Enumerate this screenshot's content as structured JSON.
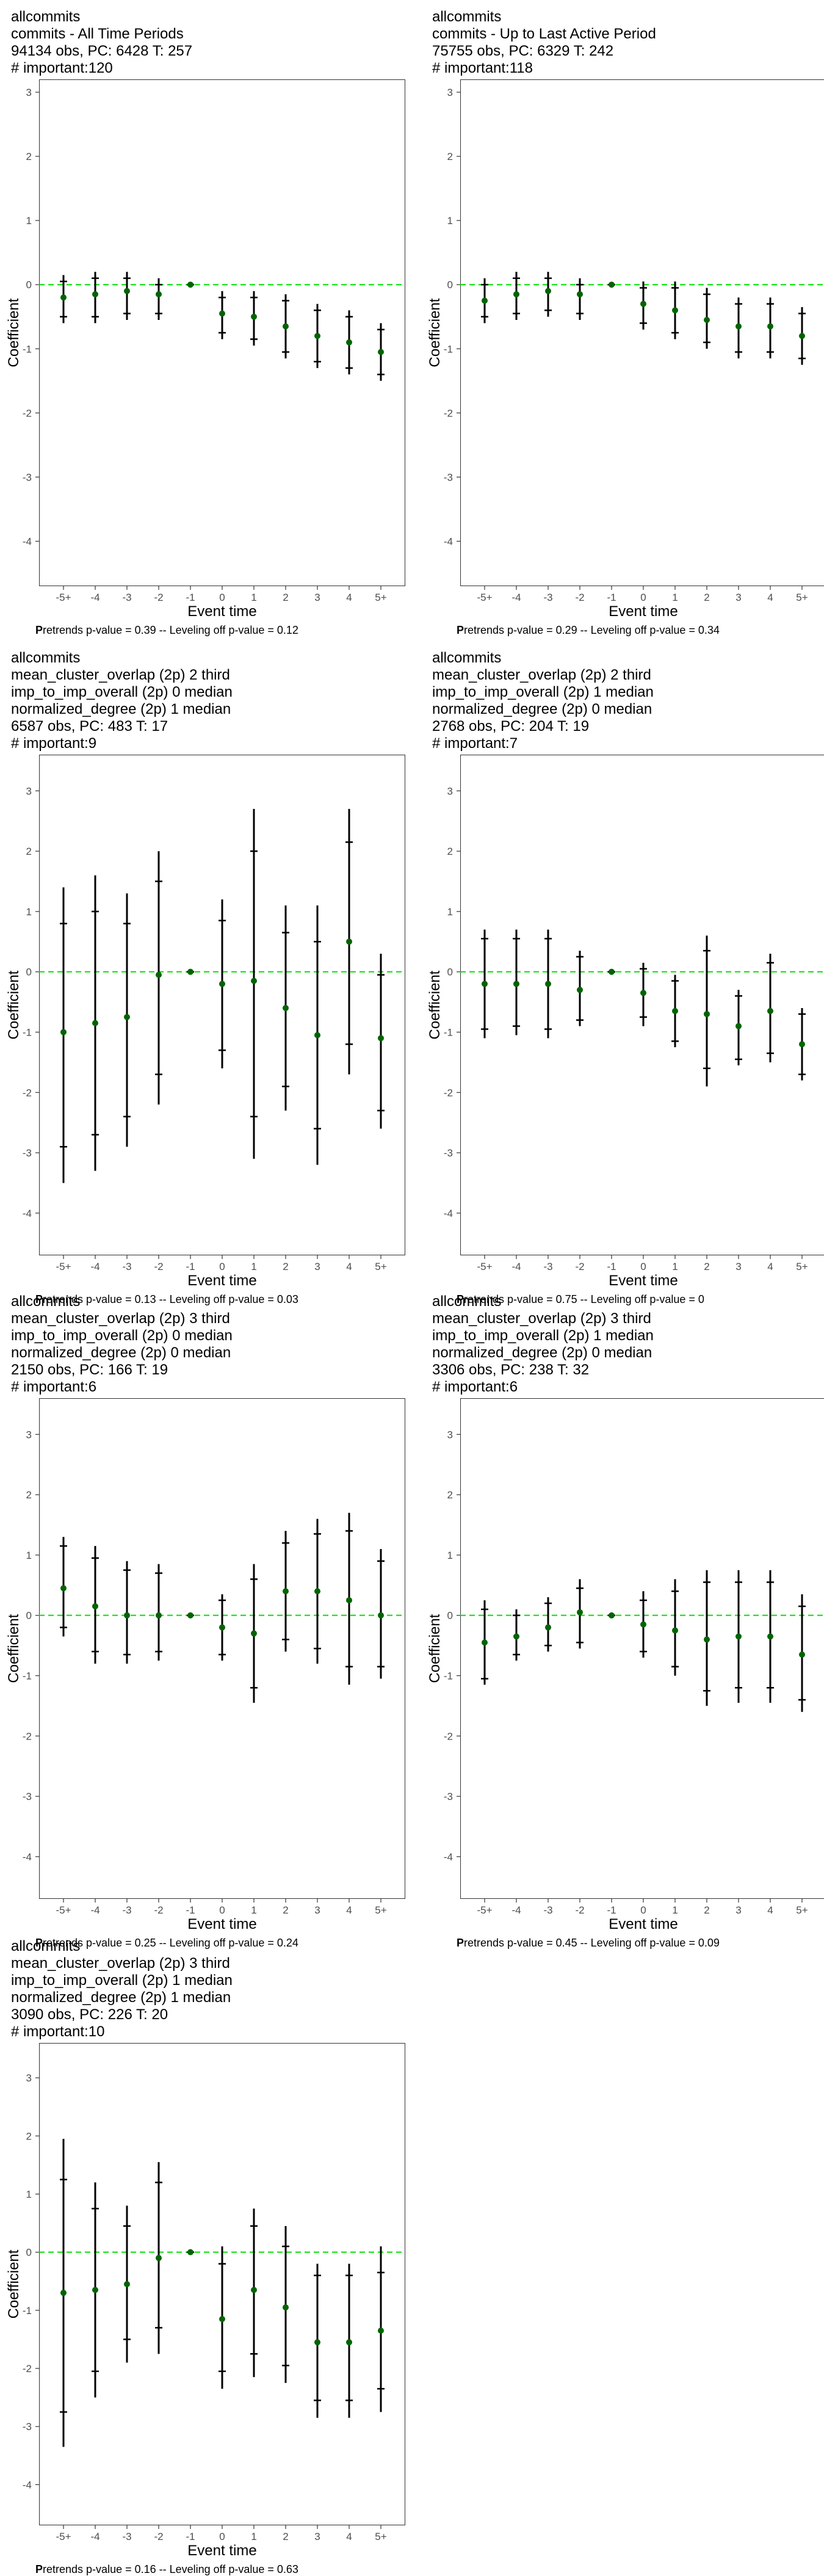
{
  "colors": {
    "point": "#006400",
    "bar": "#000000",
    "zero_line": "#00e000",
    "panel_border": "#333333"
  },
  "chart_data": [
    {
      "type": "scatter",
      "title_lines": [
        "allcommits",
        "commits - All Time Periods",
        "94134 obs, PC: 6428 T: 257",
        "# important:120"
      ],
      "xlabel": "Event time",
      "ylabel": "Coefficient",
      "categories": [
        "-5+",
        "-4",
        "-3",
        "-2",
        "-1",
        "0",
        "1",
        "2",
        "3",
        "4",
        "5+"
      ],
      "ylim": [
        -4.7,
        3.2
      ],
      "yticks": [
        3,
        2,
        1,
        0,
        -1,
        -2,
        -3,
        -4
      ],
      "estimate": [
        -0.2,
        -0.15,
        -0.1,
        -0.15,
        0,
        -0.45,
        -0.5,
        -0.65,
        -0.8,
        -0.9,
        -1.05
      ],
      "ci_low": [
        -0.6,
        -0.6,
        -0.55,
        -0.55,
        0,
        -0.85,
        -0.95,
        -1.15,
        -1.3,
        -1.4,
        -1.5
      ],
      "ci_high": [
        0.15,
        0.2,
        0.2,
        0.1,
        0,
        -0.1,
        -0.1,
        -0.15,
        -0.3,
        -0.4,
        -0.6
      ],
      "ci90_low": [
        -0.5,
        -0.5,
        -0.45,
        -0.45,
        0,
        -0.75,
        -0.85,
        -1.05,
        -1.2,
        -1.3,
        -1.4
      ],
      "ci90_high": [
        0.05,
        0.1,
        0.1,
        0.0,
        0,
        -0.2,
        -0.2,
        -0.25,
        -0.4,
        -0.5,
        -0.7
      ],
      "caption_bold": "P",
      "caption": "retrends p-value = 0.39 -- Leveling off p-value = 0.12"
    },
    {
      "type": "scatter",
      "title_lines": [
        "allcommits",
        "commits - Up to Last Active Period",
        "75755 obs, PC: 6329 T: 242",
        "# important:118"
      ],
      "xlabel": "Event time",
      "ylabel": "Coefficient",
      "categories": [
        "-5+",
        "-4",
        "-3",
        "-2",
        "-1",
        "0",
        "1",
        "2",
        "3",
        "4",
        "5+"
      ],
      "ylim": [
        -4.7,
        3.2
      ],
      "yticks": [
        3,
        2,
        1,
        0,
        -1,
        -2,
        -3,
        -4
      ],
      "estimate": [
        -0.25,
        -0.15,
        -0.1,
        -0.15,
        0,
        -0.3,
        -0.4,
        -0.55,
        -0.65,
        -0.65,
        -0.8
      ],
      "ci_low": [
        -0.6,
        -0.55,
        -0.5,
        -0.55,
        0,
        -0.7,
        -0.85,
        -1.0,
        -1.15,
        -1.15,
        -1.25
      ],
      "ci_high": [
        0.1,
        0.2,
        0.2,
        0.1,
        0,
        0.05,
        0.05,
        -0.05,
        -0.2,
        -0.2,
        -0.35
      ],
      "ci90_low": [
        -0.5,
        -0.45,
        -0.4,
        -0.45,
        0,
        -0.6,
        -0.75,
        -0.9,
        -1.05,
        -1.05,
        -1.15
      ],
      "ci90_high": [
        0.0,
        0.1,
        0.1,
        0.0,
        0,
        -0.05,
        -0.05,
        -0.15,
        -0.3,
        -0.3,
        -0.45
      ],
      "caption_bold": "P",
      "caption": "retrends p-value = 0.29 -- Leveling off p-value = 0.34"
    },
    {
      "type": "scatter",
      "title_lines": [
        "allcommits",
        "mean_cluster_overlap (2p) 2 third",
        "imp_to_imp_overall (2p) 0 median",
        "normalized_degree (2p) 1 median",
        "6587 obs, PC: 483 T: 17",
        "# important:9"
      ],
      "xlabel": "Event time",
      "ylabel": "Coefficient",
      "categories": [
        "-5+",
        "-4",
        "-3",
        "-2",
        "-1",
        "0",
        "1",
        "2",
        "3",
        "4",
        "5+"
      ],
      "ylim": [
        -4.7,
        3.6
      ],
      "yticks": [
        3,
        2,
        1,
        0,
        -1,
        -2,
        -3,
        -4
      ],
      "estimate": [
        -1.0,
        -0.85,
        -0.75,
        -0.05,
        0,
        -0.2,
        -0.15,
        -0.6,
        -1.05,
        0.5,
        -1.1
      ],
      "ci_low": [
        -3.5,
        -3.3,
        -2.9,
        -2.2,
        0,
        -1.6,
        -3.1,
        -2.3,
        -3.2,
        -1.7,
        -2.6
      ],
      "ci_high": [
        1.4,
        1.6,
        1.3,
        2.0,
        0,
        1.2,
        2.7,
        1.1,
        1.1,
        2.7,
        0.3
      ],
      "ci90_low": [
        -2.9,
        -2.7,
        -2.4,
        -1.7,
        0,
        -1.3,
        -2.4,
        -1.9,
        -2.6,
        -1.2,
        -2.3
      ],
      "ci90_high": [
        0.8,
        1.0,
        0.8,
        1.5,
        0,
        0.85,
        2.0,
        0.65,
        0.5,
        2.15,
        -0.05
      ],
      "caption_bold": "P",
      "caption": "retrends p-value = 0.13 -- Leveling off p-value = 0.03"
    },
    {
      "type": "scatter",
      "title_lines": [
        "allcommits",
        "mean_cluster_overlap (2p) 2 third",
        "imp_to_imp_overall (2p) 1 median",
        "normalized_degree (2p) 0 median",
        "2768 obs, PC: 204 T: 19",
        "# important:7"
      ],
      "xlabel": "Event time",
      "ylabel": "Coefficient",
      "categories": [
        "-5+",
        "-4",
        "-3",
        "-2",
        "-1",
        "0",
        "1",
        "2",
        "3",
        "4",
        "5+"
      ],
      "ylim": [
        -4.7,
        3.6
      ],
      "yticks": [
        3,
        2,
        1,
        0,
        -1,
        -2,
        -3,
        -4
      ],
      "estimate": [
        -0.2,
        -0.2,
        -0.2,
        -0.3,
        0,
        -0.35,
        -0.65,
        -0.7,
        -0.9,
        -0.65,
        -1.2
      ],
      "ci_low": [
        -1.1,
        -1.05,
        -1.1,
        -0.9,
        0,
        -0.9,
        -1.25,
        -1.9,
        -1.55,
        -1.5,
        -1.8
      ],
      "ci_high": [
        0.7,
        0.7,
        0.7,
        0.35,
        0,
        0.15,
        -0.05,
        0.6,
        -0.3,
        0.3,
        -0.6
      ],
      "ci90_low": [
        -0.95,
        -0.9,
        -0.95,
        -0.8,
        0,
        -0.75,
        -1.15,
        -1.6,
        -1.45,
        -1.35,
        -1.7
      ],
      "ci90_high": [
        0.55,
        0.55,
        0.55,
        0.25,
        0,
        0.05,
        -0.15,
        0.35,
        -0.4,
        0.15,
        -0.7
      ],
      "caption_bold": "P",
      "caption": "retrends p-value = 0.75 -- Leveling off p-value = 0"
    },
    {
      "type": "scatter",
      "title_lines": [
        "allcommits",
        "mean_cluster_overlap (2p) 3 third",
        "imp_to_imp_overall (2p) 0 median",
        "normalized_degree (2p) 0 median",
        "2150 obs, PC: 166 T: 19",
        "# important:6"
      ],
      "xlabel": "Event time",
      "ylabel": "Coefficient",
      "categories": [
        "-5+",
        "-4",
        "-3",
        "-2",
        "-1",
        "0",
        "1",
        "2",
        "3",
        "4",
        "5+"
      ],
      "ylim": [
        -4.7,
        3.6
      ],
      "yticks": [
        3,
        2,
        1,
        0,
        -1,
        -2,
        -3,
        -4
      ],
      "estimate": [
        0.45,
        0.15,
        0.0,
        0.0,
        0,
        -0.2,
        -0.3,
        0.4,
        0.4,
        0.25,
        0.0
      ],
      "ci_low": [
        -0.35,
        -0.8,
        -0.8,
        -0.75,
        0,
        -0.75,
        -1.45,
        -0.6,
        -0.8,
        -1.15,
        -1.05
      ],
      "ci_high": [
        1.3,
        1.15,
        0.9,
        0.85,
        0,
        0.35,
        0.85,
        1.4,
        1.6,
        1.7,
        1.1
      ],
      "ci90_low": [
        -0.2,
        -0.6,
        -0.65,
        -0.6,
        0,
        -0.65,
        -1.2,
        -0.4,
        -0.55,
        -0.85,
        -0.85
      ],
      "ci90_high": [
        1.15,
        0.95,
        0.75,
        0.7,
        0,
        0.25,
        0.6,
        1.2,
        1.35,
        1.4,
        0.9
      ],
      "caption_bold": "P",
      "caption": "retrends p-value = 0.25 -- Leveling off p-value = 0.24"
    },
    {
      "type": "scatter",
      "title_lines": [
        "allcommits",
        "mean_cluster_overlap (2p) 3 third",
        "imp_to_imp_overall (2p) 1 median",
        "normalized_degree (2p) 0 median",
        "3306 obs, PC: 238 T: 32",
        "# important:6"
      ],
      "xlabel": "Event time",
      "ylabel": "Coefficient",
      "categories": [
        "-5+",
        "-4",
        "-3",
        "-2",
        "-1",
        "0",
        "1",
        "2",
        "3",
        "4",
        "5+"
      ],
      "ylim": [
        -4.7,
        3.6
      ],
      "yticks": [
        3,
        2,
        1,
        0,
        -1,
        -2,
        -3,
        -4
      ],
      "estimate": [
        -0.45,
        -0.35,
        -0.2,
        0.05,
        0,
        -0.15,
        -0.25,
        -0.4,
        -0.35,
        -0.35,
        -0.65
      ],
      "ci_low": [
        -1.15,
        -0.75,
        -0.6,
        -0.55,
        0,
        -0.7,
        -1.0,
        -1.5,
        -1.45,
        -1.45,
        -1.6
      ],
      "ci_high": [
        0.25,
        0.1,
        0.3,
        0.6,
        0,
        0.4,
        0.6,
        0.75,
        0.75,
        0.75,
        0.35
      ],
      "ci90_low": [
        -1.05,
        -0.65,
        -0.5,
        -0.45,
        0,
        -0.6,
        -0.85,
        -1.25,
        -1.2,
        -1.2,
        -1.4
      ],
      "ci90_high": [
        0.1,
        0.0,
        0.2,
        0.45,
        0,
        0.25,
        0.4,
        0.55,
        0.55,
        0.55,
        0.15
      ],
      "caption_bold": "P",
      "caption": "retrends p-value = 0.45 -- Leveling off p-value = 0.09"
    },
    {
      "type": "scatter",
      "title_lines": [
        "allcommits",
        "mean_cluster_overlap (2p) 3 third",
        "imp_to_imp_overall (2p) 1 median",
        "normalized_degree (2p) 1 median",
        "3090 obs, PC: 226 T: 20",
        "# important:10"
      ],
      "xlabel": "Event time",
      "ylabel": "Coefficient",
      "categories": [
        "-5+",
        "-4",
        "-3",
        "-2",
        "-1",
        "0",
        "1",
        "2",
        "3",
        "4",
        "5+"
      ],
      "ylim": [
        -4.7,
        3.6
      ],
      "yticks": [
        3,
        2,
        1,
        0,
        -1,
        -2,
        -3,
        -4
      ],
      "estimate": [
        -0.7,
        -0.65,
        -0.55,
        -0.1,
        0,
        -1.15,
        -0.65,
        -0.95,
        -1.55,
        -1.55,
        -1.35
      ],
      "ci_low": [
        -3.35,
        -2.5,
        -1.9,
        -1.75,
        0,
        -2.35,
        -2.15,
        -2.25,
        -2.85,
        -2.85,
        -2.75
      ],
      "ci_high": [
        1.95,
        1.2,
        0.8,
        1.55,
        0,
        0.1,
        0.75,
        0.45,
        -0.2,
        -0.2,
        0.1
      ],
      "ci90_low": [
        -2.75,
        -2.05,
        -1.5,
        -1.3,
        0,
        -2.05,
        -1.75,
        -1.95,
        -2.55,
        -2.55,
        -2.35
      ],
      "ci90_high": [
        1.25,
        0.75,
        0.45,
        1.2,
        0,
        -0.2,
        0.45,
        0.1,
        -0.4,
        -0.4,
        -0.35
      ],
      "caption_bold": "P",
      "caption": "retrends p-value = 0.16 -- Leveling off p-value = 0.63"
    }
  ]
}
